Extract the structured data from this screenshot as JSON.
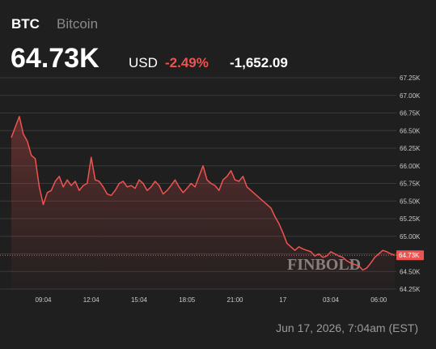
{
  "chart_data": {
    "type": "line",
    "symbol": "BTC",
    "name": "Bitcoin",
    "price": "64.73K",
    "currency": "USD",
    "change_percent": "-2.49%",
    "change": "-1,652.09",
    "timestamp": "Jun 17, 2026, 7:04am (EST)",
    "watermark": "FINBOLD",
    "grid": true,
    "categories": [
      null,
      null,
      null,
      null,
      null,
      null,
      null,
      null,
      "09:04",
      null,
      null,
      null,
      null,
      null,
      null,
      null,
      null,
      null,
      null,
      null,
      "12:04",
      null,
      null,
      null,
      null,
      null,
      null,
      null,
      null,
      null,
      null,
      null,
      "15:04",
      null,
      null,
      null,
      null,
      null,
      null,
      null,
      null,
      null,
      null,
      null,
      "18:05",
      null,
      null,
      null,
      null,
      null,
      null,
      null,
      null,
      null,
      null,
      null,
      "21:00",
      null,
      null,
      null,
      null,
      null,
      null,
      null,
      null,
      null,
      null,
      null,
      "17",
      null,
      null,
      null,
      null,
      null,
      null,
      null,
      null,
      null,
      null,
      null,
      "03:04",
      null,
      null,
      null,
      null,
      null,
      null,
      null,
      null,
      null,
      null,
      null,
      "06:00",
      null,
      null,
      null,
      null
    ],
    "series": [
      {
        "color": "#ef5350",
        "values": [
          66.4,
          66.55,
          66.7,
          66.45,
          66.35,
          66.15,
          66.1,
          65.7,
          65.45,
          65.62,
          65.65,
          65.78,
          65.85,
          65.7,
          65.8,
          65.72,
          65.78,
          65.65,
          65.72,
          65.75,
          66.12,
          65.8,
          65.78,
          65.7,
          65.6,
          65.58,
          65.65,
          65.75,
          65.78,
          65.7,
          65.72,
          65.68,
          65.8,
          65.75,
          65.65,
          65.7,
          65.78,
          65.72,
          65.6,
          65.65,
          65.72,
          65.8,
          65.7,
          65.62,
          65.68,
          65.75,
          65.7,
          65.85,
          66.0,
          65.8,
          65.75,
          65.72,
          65.65,
          65.8,
          65.85,
          65.93,
          65.8,
          65.78,
          65.85,
          65.7,
          65.65,
          65.6,
          65.55,
          65.5,
          65.45,
          65.4,
          65.28,
          65.18,
          65.05,
          64.9,
          64.85,
          64.8,
          64.85,
          64.82,
          64.8,
          64.78,
          64.72,
          64.75,
          64.7,
          64.72,
          64.78,
          64.75,
          64.72,
          64.7,
          64.65,
          64.62,
          64.6,
          64.58,
          64.52,
          64.55,
          64.62,
          64.7,
          64.75,
          64.8,
          64.78,
          64.75,
          64.73
        ]
      }
    ],
    "last_value": {
      "value": 64.73,
      "label": "64.73K"
    },
    "ylim": [
      64.25,
      67.25
    ],
    "yticks": [
      {
        "value": 64.25,
        "label": "64.25K"
      },
      {
        "value": 64.5,
        "label": "64.50K"
      },
      {
        "value": 64.75,
        "label": "64.75K"
      },
      {
        "value": 65,
        "label": "65.00K"
      },
      {
        "value": 65.25,
        "label": "65.25K"
      },
      {
        "value": 65.5,
        "label": "65.50K"
      },
      {
        "value": 65.75,
        "label": "65.75K"
      },
      {
        "value": 66,
        "label": "66.00K"
      },
      {
        "value": 66.25,
        "label": "66.25K"
      },
      {
        "value": 66.5,
        "label": "66.50K"
      },
      {
        "value": 66.75,
        "label": "66.75K"
      },
      {
        "value": 67,
        "label": "67.00K"
      },
      {
        "value": 67.25,
        "label": "67.25K"
      }
    ]
  }
}
